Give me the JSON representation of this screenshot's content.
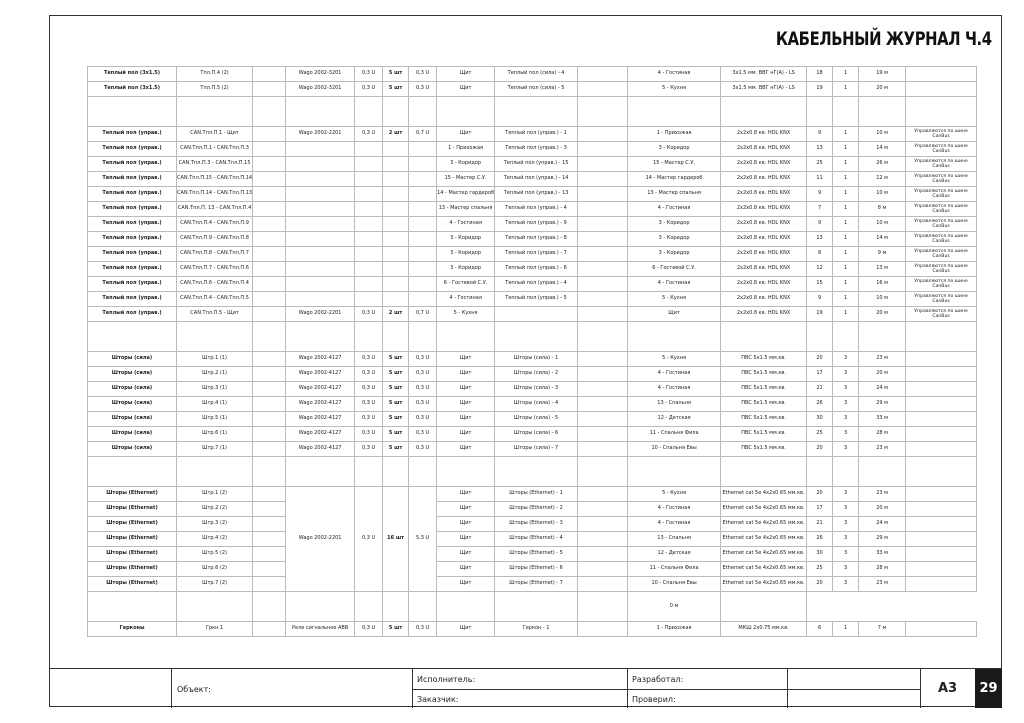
{
  "title": "КАБЕЛЬНЫЙ ЖУРНАЛ Ч.4",
  "note_canbus": "Управляются по шине CanBus",
  "sections": [
    {
      "id": "heat-power",
      "rows": [
        [
          "Теплый пол (3х1.5)",
          "Тпл.П.4 (2)",
          "",
          "Wago 2002-3201",
          "0,3 U",
          "5 шт",
          "0,3 U",
          "Щит",
          "Теплый пол (сила) - 4",
          "",
          "4 - Гостиная",
          "3х1.5 мм. ВВГ нГ(А) - LS",
          "18",
          "1",
          "19 м",
          ""
        ],
        [
          "Теплый пол (3х1.5)",
          "Тпл.П.5 (2)",
          "",
          "Wago 2002-3201",
          "0,3 U",
          "5 шт",
          "0,3 U",
          "Щит",
          "Теплый пол (сила) - 5",
          "",
          "5 - Кухня",
          "3х1.5 мм. ВВГ нГ(А) - LS",
          "19",
          "1",
          "20 м",
          ""
        ],
        [
          "",
          "",
          "",
          "",
          "",
          "",
          "",
          "",
          "",
          "",
          "",
          "",
          "",
          "",
          "",
          ""
        ]
      ],
      "spacer_last": true
    },
    {
      "id": "heat-control",
      "rows": [
        [
          "Теплый пол (управ.)",
          "CAN.Тпл.П.1 - Щит",
          "",
          "Wago 2002-2201",
          "0,3 U",
          "2 шт",
          "0,7 U",
          "Щит",
          "Теплый пол (управ.) - 1",
          "",
          "1 - Прихожая",
          "2х2х0.8 кв. HDL KNX",
          "9",
          "1",
          "10 м",
          "Управляются по шине CanBus"
        ],
        [
          "Теплый пол (управ.)",
          "CAN.Тпл.П.1 - CAN.Тпл.П.3",
          "",
          "",
          "",
          "",
          "",
          "1 - Прихожая",
          "Теплый пол (управ.) - 3",
          "",
          "3 - Коридор",
          "2х2х0.8 кв. HDL KNX",
          "13",
          "1",
          "14 м",
          "Управляются по шине CanBus"
        ],
        [
          "Теплый пол (управ.)",
          "CAN.Тпл.П.3 - CAN.Тпл.П.15",
          "",
          "",
          "",
          "",
          "",
          "3 - Коридор",
          "Теплый пол (управ.) - 15",
          "",
          "15 - Мастер С.У.",
          "2х2х0.8 кв. HDL KNX",
          "25",
          "1",
          "26 м",
          "Управляются по шине CanBus"
        ],
        [
          "Теплый пол (управ.)",
          "CAN.Тпл.П.15 - CAN.Тпл.П.14",
          "",
          "",
          "",
          "",
          "",
          "15 - Мастер С.У.",
          "Теплый пол (управ.) - 14",
          "",
          "14 - Мастер гардероб",
          "2х2х0.8 кв. HDL KNX",
          "11",
          "1",
          "12 м",
          "Управляются по шине CanBus"
        ],
        [
          "Теплый пол (управ.)",
          "CAN.Тпл.П.14 - CAN.Тпл.П.13",
          "",
          "",
          "",
          "",
          "",
          "14 - Мастер гардероб",
          "Теплый пол (управ.) - 13",
          "",
          "13 - Мастер спальня",
          "2х2х0.8 кв. HDL KNX",
          "9",
          "1",
          "10 м",
          "Управляются по шине CanBus"
        ],
        [
          "Теплый пол (управ.)",
          "CAN.Тпл.П. 13 - CAN.Тпл.П.4",
          "",
          "",
          "",
          "",
          "",
          "13 - Мастер спальня",
          "Теплый пол (управ.) - 4",
          "",
          "4 - Гостиная",
          "2х2х0.8 кв. HDL KNX",
          "7",
          "1",
          "8 м",
          "Управляются по шине CanBus"
        ],
        [
          "Теплый пол (управ.)",
          "CAN.Тпл.П.4 - CAN.Тпл.П.9",
          "",
          "",
          "",
          "",
          "",
          "4 - Гостиная",
          "Теплый пол (управ.) - 9",
          "",
          "3 - Коридор",
          "2х2х0.8 кв. HDL KNX",
          "9",
          "1",
          "10 м",
          "Управляются по шине CanBus"
        ],
        [
          "Теплый пол (управ.)",
          "CAN.Тпл.П.9 - CAN.Тпл.П.8",
          "",
          "",
          "",
          "",
          "",
          "3 - Коридор",
          "Теплый пол (управ.) - 8",
          "",
          "3 - Коридор",
          "2х2х0.8 кв. HDL KNX",
          "13",
          "1",
          "14 м",
          "Управляются по шине CanBus"
        ],
        [
          "Теплый пол (управ.)",
          "CAN.Тпл.П.8 - CAN.Тпл.П.7",
          "",
          "",
          "",
          "",
          "",
          "3 - Коридор",
          "Теплый пол (управ.) - 7",
          "",
          "3 - Коридор",
          "2х2х0.8 кв. HDL KNX",
          "8",
          "1",
          "9 м",
          "Управляются по шине CanBus"
        ],
        [
          "Теплый пол (управ.)",
          "CAN.Тпл.П.7 - CAN.Тпл.П.6",
          "",
          "",
          "",
          "",
          "",
          "3 - Коридор",
          "Теплый пол (управ.) - 6",
          "",
          "6 - Гостевой С.У.",
          "2х2х0.8 кв. HDL KNX",
          "12",
          "1",
          "13 м",
          "Управляются по шине CanBus"
        ],
        [
          "Теплый пол (управ.)",
          "CAN.Тпл.П.6 - CAN.Тпл.П.4",
          "",
          "",
          "",
          "",
          "",
          "6 - Гостевой С.У.",
          "Теплый пол (управ.) - 4",
          "",
          "4 - Гостиная",
          "2х2х0.8 кв. HDL KNX",
          "15",
          "1",
          "16 м",
          "Управляются по шине CanBus"
        ],
        [
          "Теплый пол (управ.)",
          "CAN.Тпл.П.4 - CAN.Тпл.П.5",
          "",
          "",
          "",
          "",
          "",
          "4 - Гостиная",
          "Теплый пол (управ.) - 5",
          "",
          "5 - Кухня",
          "2х2х0.8 кв. HDL KNX",
          "9",
          "1",
          "10 м",
          "Управляются по шине CanBus"
        ],
        [
          "Теплый пол (управ.)",
          "CAN.Тпл.П.5 - Щит",
          "",
          "Wago 2002-2201",
          "0,3 U",
          "2 шт",
          "0,7 U",
          "5 - Кухня",
          "",
          "",
          "Щит",
          "2х2х0.8 кв. HDL KNX",
          "19",
          "1",
          "20 м",
          "Управляются по шине CanBus"
        ],
        [
          "",
          "",
          "",
          "",
          "",
          "",
          "",
          "",
          "",
          "",
          "",
          "",
          "",
          "",
          "",
          ""
        ]
      ],
      "spacer_last": true
    },
    {
      "id": "blinds-power",
      "rows": [
        [
          "Шторы (сила)",
          "Штр.1 (1)",
          "",
          "Wago 2002-4127",
          "0,3 U",
          "5 шт",
          "0,3 U",
          "Щит",
          "Шторы (сила) - 1",
          "",
          "5 - Кухня",
          "ПВС 5х1.5 мм.кв.",
          "20",
          "3",
          "23 м",
          ""
        ],
        [
          "Шторы (сила)",
          "Штр.2 (1)",
          "",
          "Wago 2002-4127",
          "0,3 U",
          "5 шт",
          "0,3 U",
          "Щит",
          "Шторы (сила) - 2",
          "",
          "4 - Гостиная",
          "ПВС 5х1.5 мм.кв.",
          "17",
          "3",
          "20 м",
          ""
        ],
        [
          "Шторы (сила)",
          "Штр.3 (1)",
          "",
          "Wago 2002-4127",
          "0,3 U",
          "5 шт",
          "0,3 U",
          "Щит",
          "Шторы (сила) - 3",
          "",
          "4 - Гостиная",
          "ПВС 5х1.5 мм.кв.",
          "21",
          "3",
          "24 м",
          ""
        ],
        [
          "Шторы (сила)",
          "Штр.4 (1)",
          "",
          "Wago 2002-4127",
          "0,3 U",
          "5 шт",
          "0,3 U",
          "Щит",
          "Шторы (сила) - 4",
          "",
          "13 - Спальня",
          "ПВС 5х1.5 мм.кв.",
          "26",
          "3",
          "29 м",
          ""
        ],
        [
          "Шторы (сила)",
          "Штр.5 (1)",
          "",
          "Wago 2002-4127",
          "0,3 U",
          "5 шт",
          "0,3 U",
          "Щит",
          "Шторы (сила) - 5",
          "",
          "12 - Детская",
          "ПВС 5х1.5 мм.кв.",
          "30",
          "3",
          "33 м",
          ""
        ],
        [
          "Шторы (сила)",
          "Штр.6 (1)",
          "",
          "Wago 2002-4127",
          "0,3 U",
          "5 шт",
          "0,3 U",
          "Щит",
          "Шторы (сила) - 6",
          "",
          "11 - Спальня Фила",
          "ПВС 5х1.5 мм.кв.",
          "25",
          "3",
          "28 м",
          ""
        ],
        [
          "Шторы (сила)",
          "Штр.7 (1)",
          "",
          "Wago 2002-4127",
          "0,3 U",
          "5 шт",
          "0,3 U",
          "Щит",
          "Шторы (сила) - 7",
          "",
          "10 - Спальня Евы",
          "ПВС 5х1.5 мм.кв.",
          "20",
          "3",
          "23 м",
          ""
        ],
        [
          "",
          "",
          "",
          "",
          "",
          "",
          "",
          "",
          "",
          "",
          "",
          "",
          "",
          "",
          "",
          ""
        ]
      ],
      "spacer_last": true
    },
    {
      "id": "blinds-ethernet",
      "merge_terminal": true,
      "rows": [
        [
          "Шторы (Ethernet)",
          "Штр.1 (2)",
          "",
          "Wago 2002-2201",
          "0,3 U",
          "16 шт",
          "5,3 U",
          "Щит",
          "Шторы (Ethernet) - 1",
          "",
          "5 - Кухня",
          "Ethernet cat 5e 4х2х0.65 мм.кв.",
          "20",
          "3",
          "23 м",
          ""
        ],
        [
          "Шторы (Ethernet)",
          "Штр.2 (2)",
          "",
          "",
          "",
          "",
          "",
          "Щит",
          "Шторы (Ethernet) - 2",
          "",
          "4 - Гостиная",
          "Ethernet cat 5e 4х2х0.65 мм.кв.",
          "17",
          "3",
          "20 м",
          ""
        ],
        [
          "Шторы (Ethernet)",
          "Штр.3 (2)",
          "",
          "",
          "",
          "",
          "",
          "Щит",
          "Шторы (Ethernet) - 3",
          "",
          "4 - Гостиная",
          "Ethernet cat 5e 4х2х0.65 мм.кв.",
          "21",
          "3",
          "24 м",
          ""
        ],
        [
          "Шторы (Ethernet)",
          "Штр.4 (2)",
          "",
          "",
          "",
          "",
          "",
          "Щит",
          "Шторы (Ethernet) - 4",
          "",
          "13 - Спальня",
          "Ethernet cat 5e 4х2х0.65 мм.кв.",
          "26",
          "3",
          "29 м",
          ""
        ],
        [
          "Шторы (Ethernet)",
          "Штр.5 (2)",
          "",
          "",
          "",
          "",
          "",
          "Щит",
          "Шторы (Ethernet) - 5",
          "",
          "12 - Детская",
          "Ethernet cat 5e 4х2х0.65 мм.кв.",
          "30",
          "3",
          "33 м",
          ""
        ],
        [
          "Шторы (Ethernet)",
          "Штр.6 (2)",
          "",
          "",
          "",
          "",
          "",
          "Щит",
          "Шторы (Ethernet) - 6",
          "",
          "11 - Спальня Фила",
          "Ethernet cat 5e 4х2х0.65 мм.кв.",
          "25",
          "3",
          "28 м",
          ""
        ],
        [
          "Шторы (Ethernet)",
          "Штр.7 (2)",
          "",
          "",
          "",
          "",
          "",
          "Щит",
          "Шторы (Ethernet) - 7",
          "",
          "10 - Спальня Евы",
          "Ethernet cat 5e 4х2х0.65 мм.кв.",
          "20",
          "3",
          "23 м",
          ""
        ],
        [
          "",
          "",
          "",
          "",
          "",
          "",
          "",
          "",
          "",
          "",
          "",
          "",
          "",
          "",
          "0 м",
          ""
        ]
      ],
      "spacer_last": true
    },
    {
      "id": "reed-switches",
      "rows": [
        [
          "Герконы",
          "Гркн.1",
          "",
          "Реле сигнальное АВВ",
          "0,3 U",
          "5 шт",
          "0,3 U",
          "Щит",
          "Геркон - 1",
          "",
          "1 - Прихожая",
          "МКШ 2х0.75 мм.кв.",
          "6",
          "1",
          "7 м",
          ""
        ]
      ]
    }
  ],
  "title_block": {
    "object_label": "Объект:",
    "executor_label": "Исполнитель:",
    "customer_label": "Заказчик:",
    "developed_label": "Разработал:",
    "checked_label": "Проверил:",
    "format": "А3",
    "page_number": "29"
  }
}
